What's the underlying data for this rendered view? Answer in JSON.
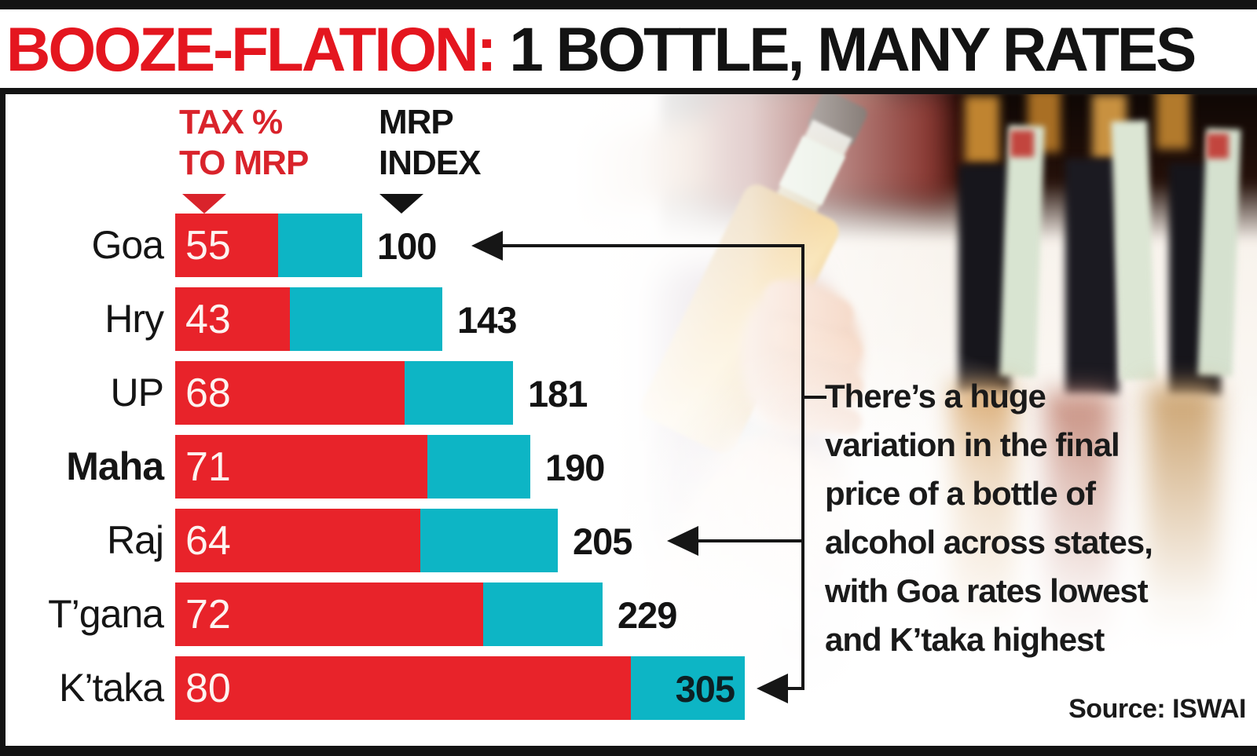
{
  "header": {
    "title_red": "BOOZE-FLATION:",
    "title_black": " 1 BOTTLE, MANY RATES"
  },
  "legend": {
    "tax_line1": "TAX %",
    "tax_line2": "TO MRP",
    "index_line1": "MRP",
    "index_line2": "INDEX"
  },
  "chart_data": {
    "type": "bar",
    "orientation": "horizontal",
    "categories": [
      "Goa",
      "Hry",
      "UP",
      "Maha",
      "Raj",
      "T’gana",
      "K’taka"
    ],
    "series": [
      {
        "name": "TAX % TO MRP",
        "values": [
          55,
          43,
          68,
          71,
          64,
          72,
          80
        ]
      },
      {
        "name": "MRP INDEX",
        "values": [
          100,
          143,
          181,
          190,
          205,
          229,
          305
        ]
      }
    ],
    "xlim": [
      0,
      305
    ],
    "bold_category": "Maha",
    "index_label_inside_bar": [
      "K’taka"
    ],
    "arrowed_categories": [
      "Goa",
      "Raj",
      "K’taka"
    ],
    "bar_colors": {
      "tax": "#e8232a",
      "index": "#0db5c5"
    },
    "bar_model": "total bar length proportional to MRP INDEX; red segment = TAX % share of bar"
  },
  "annotation": {
    "text": "There’s a huge\nvariation in the final\nprice of a bottle of\nalcohol across states,\nwith Goa rates lowest\nand K’taka highest"
  },
  "source": {
    "label": "Source: ISWAI"
  },
  "colors": {
    "title_red": "#e4161f",
    "text_black": "#131313",
    "bar_red": "#e8232a",
    "bar_teal": "#0db5c5"
  }
}
